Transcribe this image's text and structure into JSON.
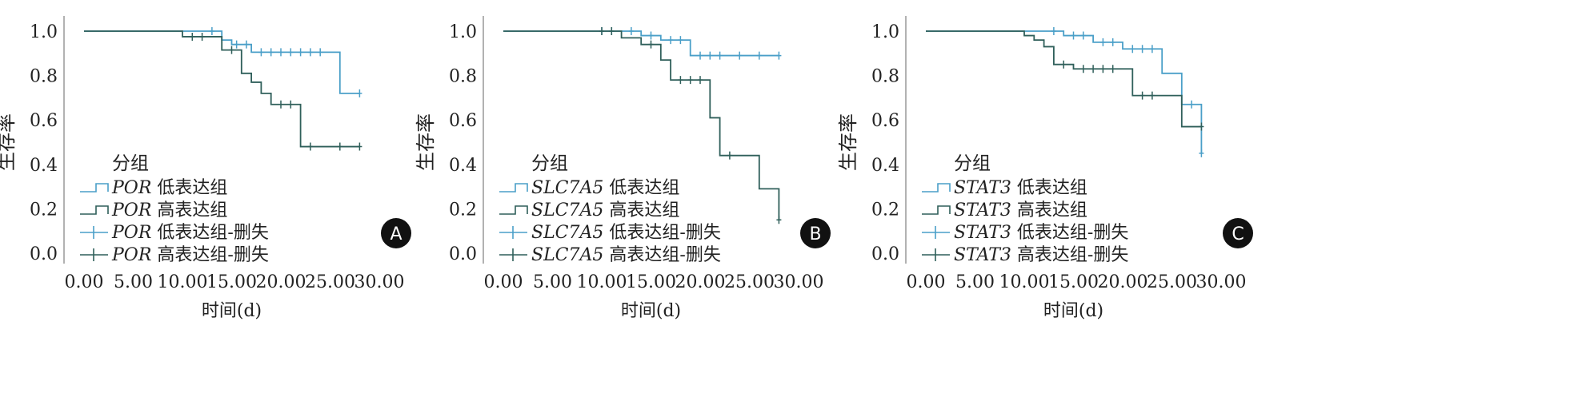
{
  "colors": {
    "low": "#4a9fc8",
    "high": "#2f5f5a",
    "axis": "#999999",
    "badge": "#111111"
  },
  "chart_data": [
    {
      "type": "line",
      "panel": "A",
      "gene": "POR",
      "ylabel": "生存率",
      "xlabel": "时间(d)",
      "xlim": [
        0,
        30
      ],
      "ylim": [
        0,
        1
      ],
      "xticks": [
        "0.00",
        "5.00",
        "10.00",
        "15.00",
        "20.00",
        "25.00",
        "30.00"
      ],
      "yticks": [
        "0.0",
        "0.2",
        "0.4",
        "0.6",
        "0.8",
        "1.0"
      ],
      "legend_title": "分组",
      "legend": [
        "POR 低表达组",
        "POR 高表达组",
        "POR 低表达组-删失",
        "POR 高表达组-删失"
      ],
      "series": [
        {
          "name": "POR 低表达组",
          "steps": [
            [
              0,
              1.0
            ],
            [
              14,
              0.96
            ],
            [
              15,
              0.94
            ],
            [
              17,
              0.905
            ],
            [
              26,
              0.72
            ]
          ],
          "end": 28,
          "censored": [
            13,
            15.5,
            16.5,
            18,
            19,
            20,
            21,
            22,
            23,
            24,
            28
          ]
        },
        {
          "name": "POR 高表达组",
          "steps": [
            [
              0,
              1.0
            ],
            [
              10,
              0.975
            ],
            [
              14,
              0.915
            ],
            [
              16,
              0.81
            ],
            [
              17,
              0.77
            ],
            [
              18,
              0.72
            ],
            [
              19,
              0.67
            ],
            [
              22,
              0.48
            ]
          ],
          "end": 28,
          "censored": [
            11,
            12,
            15,
            20,
            21,
            23,
            26,
            28
          ]
        }
      ]
    },
    {
      "type": "line",
      "panel": "B",
      "gene": "SLC7A5",
      "ylabel": "生存率",
      "xlabel": "时间(d)",
      "xlim": [
        0,
        30
      ],
      "ylim": [
        0,
        1
      ],
      "xticks": [
        "0.00",
        "5.00",
        "10.00",
        "15.00",
        "20.00",
        "25.00",
        "30.00"
      ],
      "yticks": [
        "0.0",
        "0.2",
        "0.4",
        "0.6",
        "0.8",
        "1.0"
      ],
      "legend_title": "分组",
      "legend": [
        "SLC7A5 低表达组",
        "SLC7A5 高表达组",
        "SLC7A5 低表达组-删失",
        "SLC7A5 高表达组-删失"
      ],
      "series": [
        {
          "name": "SLC7A5 低表达组",
          "steps": [
            [
              0,
              1.0
            ],
            [
              14,
              0.98
            ],
            [
              16,
              0.96
            ],
            [
              19,
              0.89
            ]
          ],
          "end": 28,
          "censored": [
            10,
            11,
            13,
            15,
            17,
            18,
            20,
            21,
            22,
            24,
            26,
            28
          ]
        },
        {
          "name": "SLC7A5 高表达组",
          "steps": [
            [
              0,
              1.0
            ],
            [
              12,
              0.97
            ],
            [
              14,
              0.94
            ],
            [
              16,
              0.87
            ],
            [
              17,
              0.78
            ],
            [
              21,
              0.61
            ],
            [
              22,
              0.44
            ],
            [
              26,
              0.29
            ],
            [
              28,
              0.15
            ]
          ],
          "end": 28,
          "censored": [
            10,
            11,
            15,
            18,
            19,
            20,
            23,
            28
          ]
        }
      ]
    },
    {
      "type": "line",
      "panel": "C",
      "gene": "STAT3",
      "ylabel": "生存率",
      "xlabel": "时间(d)",
      "xlim": [
        0,
        30
      ],
      "ylim": [
        0,
        1
      ],
      "xticks": [
        "0.00",
        "5.00",
        "10.00",
        "15.00",
        "20.00",
        "25.00",
        "30.00"
      ],
      "yticks": [
        "0.0",
        "0.2",
        "0.4",
        "0.6",
        "0.8",
        "1.0"
      ],
      "legend_title": "分组",
      "legend": [
        "STAT3 低表达组",
        "STAT3 高表达组",
        "STAT3 低表达组-删失",
        "STAT3 高表达组-删失"
      ],
      "series": [
        {
          "name": "STAT3 低表达组",
          "steps": [
            [
              0,
              1.0
            ],
            [
              14,
              0.98
            ],
            [
              17,
              0.95
            ],
            [
              20,
              0.92
            ],
            [
              24,
              0.81
            ],
            [
              26,
              0.67
            ],
            [
              28,
              0.45
            ]
          ],
          "end": 28,
          "censored": [
            13,
            15,
            16,
            18,
            19,
            21,
            22,
            23,
            27,
            28
          ]
        },
        {
          "name": "STAT3 高表达组",
          "steps": [
            [
              0,
              1.0
            ],
            [
              10,
              0.98
            ],
            [
              11,
              0.96
            ],
            [
              12,
              0.93
            ],
            [
              13,
              0.85
            ],
            [
              15,
              0.83
            ],
            [
              21,
              0.71
            ],
            [
              26,
              0.57
            ]
          ],
          "end": 28,
          "censored": [
            14,
            16,
            17,
            18,
            19,
            22,
            23,
            28
          ]
        }
      ]
    }
  ]
}
